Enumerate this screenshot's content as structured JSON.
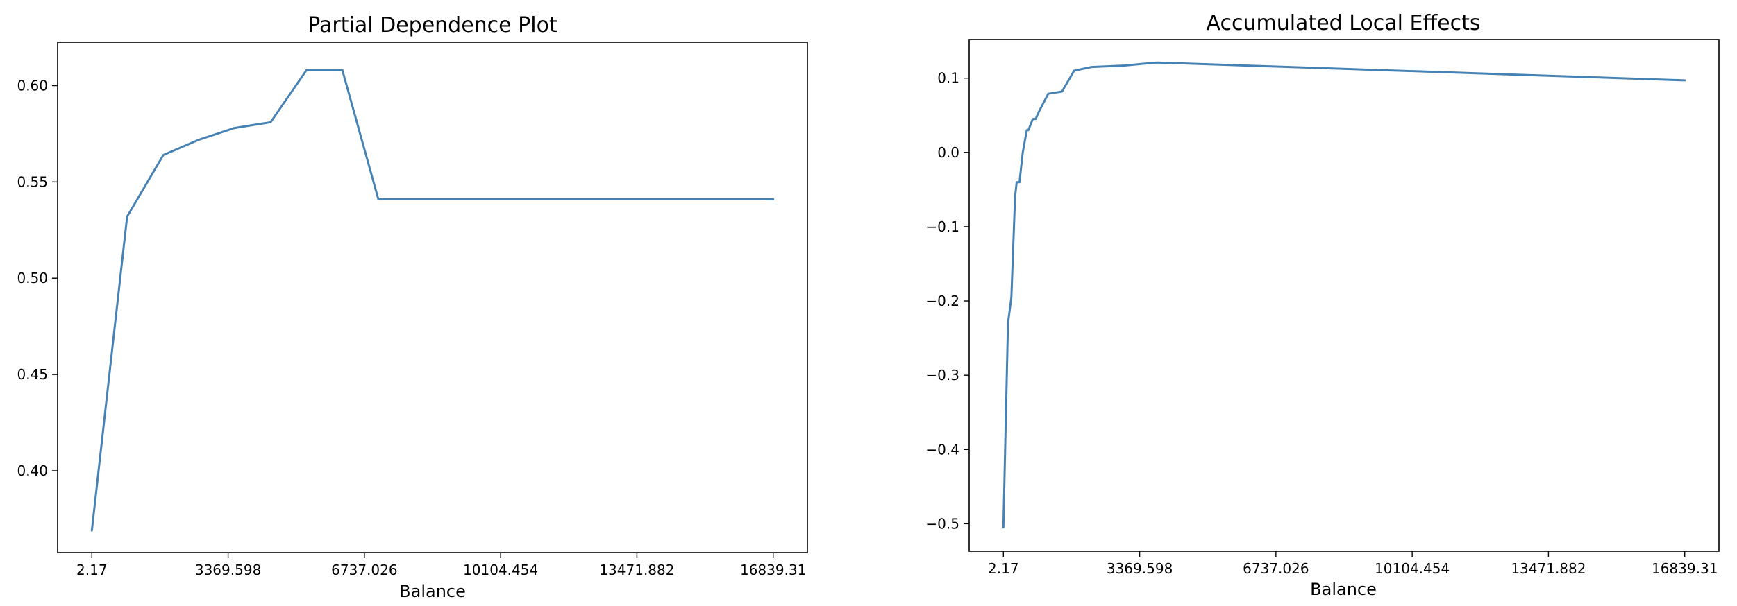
{
  "colors": {
    "series": "#4682b4",
    "axes": "#000000",
    "background": "#ffffff"
  },
  "chart_data": [
    {
      "type": "line",
      "title": "Partial Dependence Plot",
      "xlabel": "Balance",
      "ylabel": "",
      "grid": false,
      "xlim": [
        -843.69,
        17685.17
      ],
      "ylim": [
        0.3575,
        0.6225
      ],
      "xticks": [
        2.17,
        3369.598,
        6737.026,
        10104.454,
        13471.882,
        16839.31
      ],
      "xtick_labels": [
        "2.17",
        "3369.598",
        "6737.026",
        "10104.454",
        "13471.882",
        "16839.31"
      ],
      "yticks": [
        0.4,
        0.45,
        0.5,
        0.55,
        0.6
      ],
      "ytick_labels": [
        "0.40",
        "0.45",
        "0.50",
        "0.55",
        "0.60"
      ],
      "series": [
        {
          "x": [
            2.17,
            873,
            1769,
            2660,
            3530,
            4420,
            5306,
            6193,
            7082,
            16839.31
          ],
          "y": [
            0.369,
            0.532,
            0.564,
            0.572,
            0.578,
            0.581,
            0.608,
            0.608,
            0.541,
            0.541
          ]
        }
      ]
    },
    {
      "type": "line",
      "title": "Accumulated Local Effects",
      "xlabel": "Balance",
      "ylabel": "",
      "grid": false,
      "xlim": [
        -843.69,
        17685.17
      ],
      "ylim": [
        -0.537,
        0.152
      ],
      "xticks": [
        2.17,
        3369.598,
        6737.026,
        10104.454,
        13471.882,
        16839.31
      ],
      "xtick_labels": [
        "2.17",
        "3369.598",
        "6737.026",
        "10104.454",
        "13471.882",
        "16839.31"
      ],
      "yticks": [
        -0.5,
        -0.4,
        -0.3,
        -0.2,
        -0.1,
        0.0,
        0.1
      ],
      "ytick_labels": [
        "−0.5",
        "−0.4",
        "−0.3",
        "−0.2",
        "−0.1",
        "0.0",
        "0.1"
      ],
      "series": [
        {
          "x": [
            2.17,
            115,
            200,
            290,
            330,
            400,
            480,
            580,
            620,
            730,
            800,
            880,
            1110,
            1450,
            1750,
            2180,
            2580,
            3000,
            3800,
            16839.31
          ],
          "y": [
            -0.505,
            -0.23,
            -0.195,
            -0.06,
            -0.04,
            -0.04,
            0.0,
            0.03,
            0.03,
            0.045,
            0.045,
            0.055,
            0.079,
            0.082,
            0.11,
            0.115,
            0.116,
            0.117,
            0.121,
            0.097
          ]
        }
      ]
    }
  ]
}
